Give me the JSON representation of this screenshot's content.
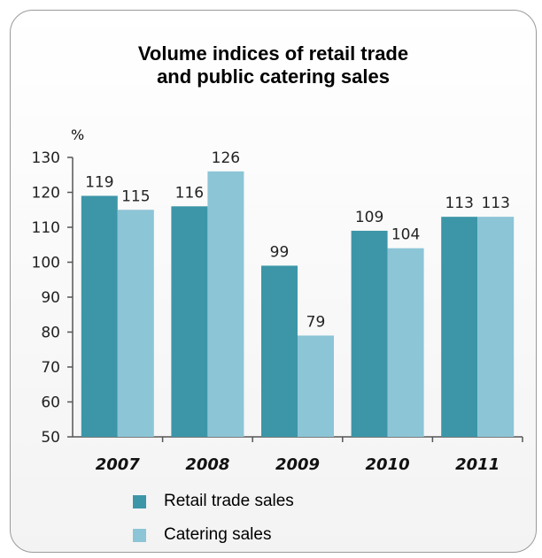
{
  "chart_data": {
    "type": "bar",
    "title_lines": [
      "Volume indices of retail trade",
      "and public catering sales"
    ],
    "ylabel": "%",
    "xlabel": "",
    "ylim": [
      50,
      130
    ],
    "yticks": [
      50,
      60,
      70,
      80,
      90,
      100,
      110,
      120,
      130
    ],
    "categories": [
      "2007",
      "2008",
      "2009",
      "2010",
      "2011"
    ],
    "series": [
      {
        "name": "Retail trade sales",
        "color": "#3c96a8",
        "values": [
          119,
          116,
          99,
          109,
          113
        ]
      },
      {
        "name": "Catering sales",
        "color": "#8cc5d6",
        "values": [
          115,
          126,
          79,
          104,
          113
        ]
      }
    ],
    "grid": false,
    "legend_position": "bottom"
  }
}
